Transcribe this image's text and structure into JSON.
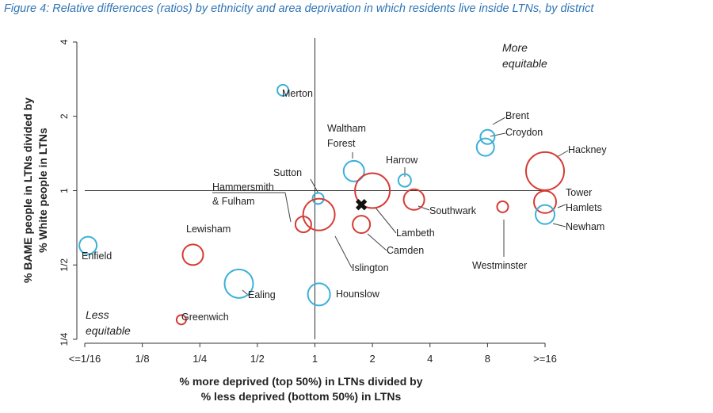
{
  "title": "Figure 4: Relative differences (ratios) by ethnicity and area deprivation in which residents live inside LTNs, by district",
  "chart_data": {
    "type": "scatter",
    "xscale": "log2",
    "yscale": "log2",
    "xlabel_line1": "% more deprived (top 50%) in LTNs divided by",
    "xlabel_line2": "% less deprived (bottom 50%) in LTNs",
    "ylabel_line1": "% BAME people in LTNs divided by",
    "ylabel_line2": "% White people in LTNs",
    "xticks": [
      {
        "value": 0.0625,
        "label": "<=1/16"
      },
      {
        "value": 0.125,
        "label": "1/8"
      },
      {
        "value": 0.25,
        "label": "1/4"
      },
      {
        "value": 0.5,
        "label": "1/2"
      },
      {
        "value": 1,
        "label": "1"
      },
      {
        "value": 2,
        "label": "2"
      },
      {
        "value": 4,
        "label": "4"
      },
      {
        "value": 8,
        "label": "8"
      },
      {
        "value": 16,
        "label": ">=16"
      }
    ],
    "yticks": [
      {
        "value": 0.25,
        "label": "1/4"
      },
      {
        "value": 0.5,
        "label": "1/2"
      },
      {
        "value": 1,
        "label": "1"
      },
      {
        "value": 2,
        "label": "2"
      },
      {
        "value": 4,
        "label": "4"
      }
    ],
    "xlim": [
      0.0625,
      16
    ],
    "ylim": [
      0.25,
      4
    ],
    "corner_top_right": [
      "More",
      "equitable"
    ],
    "corner_bottom_left": [
      "Less",
      "equitable"
    ],
    "colors": {
      "blue": "#3bb0d8",
      "red": "#d63b34",
      "axis": "#333333"
    },
    "london_marker": "✖",
    "london_point": {
      "x": 1.75,
      "y": 0.87
    },
    "points": [
      {
        "name": "Merton",
        "x": 0.68,
        "y": 2.55,
        "size": 7,
        "color": "blue"
      },
      {
        "name": "Waltham Forest",
        "x": 1.6,
        "y": 1.2,
        "size": 13,
        "color": "blue"
      },
      {
        "name": "Harrow",
        "x": 2.95,
        "y": 1.1,
        "size": 8,
        "color": "blue"
      },
      {
        "name": "Brent",
        "x": 8.0,
        "y": 1.65,
        "size": 9,
        "color": "blue"
      },
      {
        "name": "Croydon",
        "x": 7.8,
        "y": 1.5,
        "size": 11,
        "color": "blue"
      },
      {
        "name": "Hackney",
        "x": 16,
        "y": 1.2,
        "size": 24,
        "color": "red"
      },
      {
        "name": "Tower Hamlets",
        "x": 16,
        "y": 0.9,
        "size": 14,
        "color": "red"
      },
      {
        "name": "Newham",
        "x": 16,
        "y": 0.8,
        "size": 12,
        "color": "blue"
      },
      {
        "name": "Westminster",
        "x": 9.6,
        "y": 0.86,
        "size": 7,
        "color": "red"
      },
      {
        "name": "Southwark",
        "x": 3.3,
        "y": 0.92,
        "size": 13,
        "color": "red"
      },
      {
        "name": "Lambeth",
        "x": 2.0,
        "y": 1.0,
        "size": 22,
        "color": "red"
      },
      {
        "name": "Camden",
        "x": 1.75,
        "y": 0.73,
        "size": 11,
        "color": "red"
      },
      {
        "name": "Sutton",
        "x": 1.04,
        "y": 0.93,
        "size": 7,
        "color": "blue"
      },
      {
        "name": "Hammersmith & Fulham",
        "x": 0.87,
        "y": 0.73,
        "size": 10,
        "color": "red"
      },
      {
        "name": "Islington",
        "x": 1.05,
        "y": 0.8,
        "size": 20,
        "color": "red"
      },
      {
        "name": "Hounslow",
        "x": 1.05,
        "y": 0.38,
        "size": 14,
        "color": "blue"
      },
      {
        "name": "Lewisham",
        "x": 0.23,
        "y": 0.55,
        "size": 13,
        "color": "red"
      },
      {
        "name": "Ealing",
        "x": 0.4,
        "y": 0.42,
        "size": 18,
        "color": "blue"
      },
      {
        "name": "Enfield",
        "x": 0.065,
        "y": 0.6,
        "size": 11,
        "color": "blue"
      },
      {
        "name": "Greenwich",
        "x": 0.2,
        "y": 0.3,
        "size": 6,
        "color": "red"
      }
    ]
  }
}
